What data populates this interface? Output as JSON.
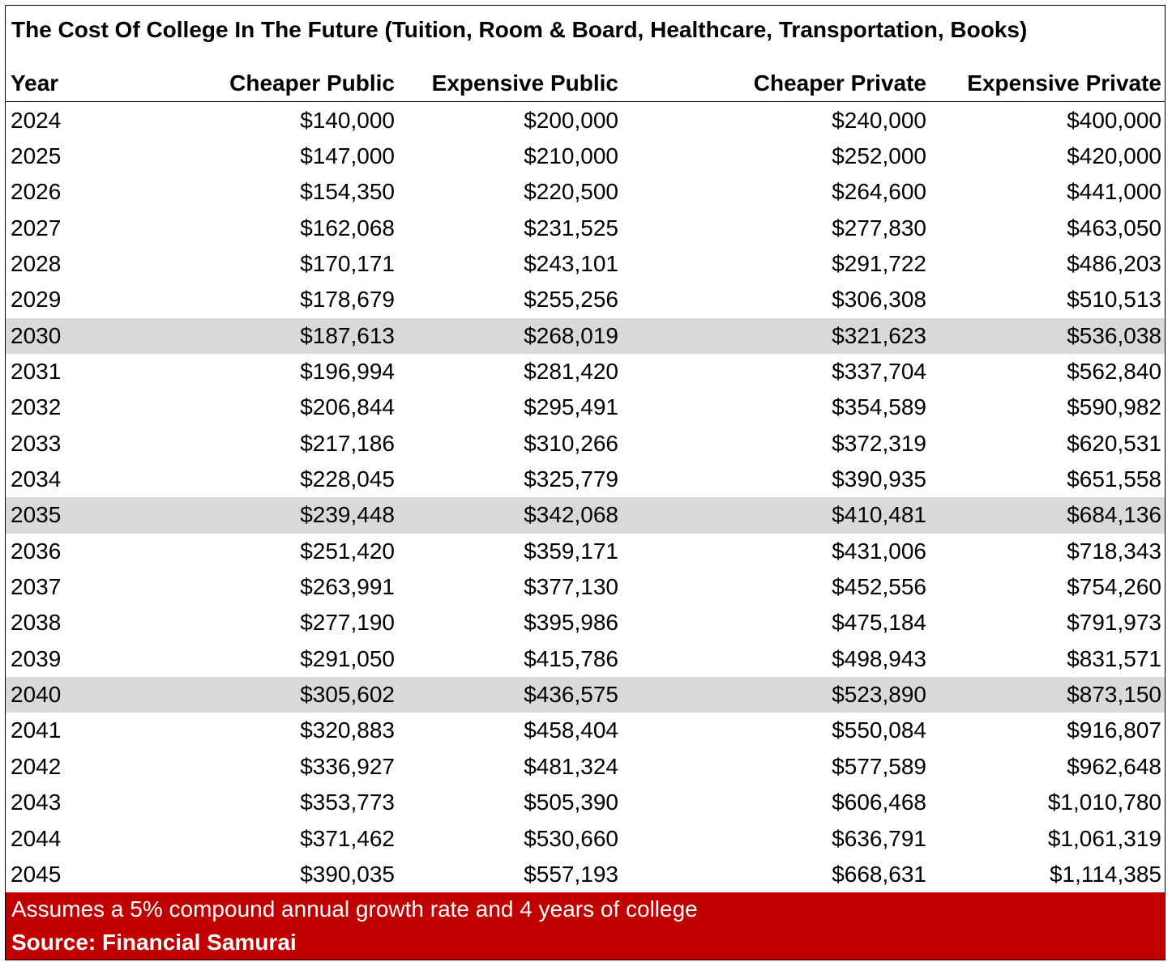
{
  "title": "The Cost Of College In The Future (Tuition, Room & Board, Healthcare, Transportation, Books)",
  "table": {
    "columns": [
      "Year",
      "Cheaper Public",
      "Expensive Public",
      "Cheaper Private",
      "Expensive Private"
    ],
    "rows": [
      [
        "2024",
        "$140,000",
        "$200,000",
        "$240,000",
        "$400,000"
      ],
      [
        "2025",
        "$147,000",
        "$210,000",
        "$252,000",
        "$420,000"
      ],
      [
        "2026",
        "$154,350",
        "$220,500",
        "$264,600",
        "$441,000"
      ],
      [
        "2027",
        "$162,068",
        "$231,525",
        "$277,830",
        "$463,050"
      ],
      [
        "2028",
        "$170,171",
        "$243,101",
        "$291,722",
        "$486,203"
      ],
      [
        "2029",
        "$178,679",
        "$255,256",
        "$306,308",
        "$510,513"
      ],
      [
        "2030",
        "$187,613",
        "$268,019",
        "$321,623",
        "$536,038"
      ],
      [
        "2031",
        "$196,994",
        "$281,420",
        "$337,704",
        "$562,840"
      ],
      [
        "2032",
        "$206,844",
        "$295,491",
        "$354,589",
        "$590,982"
      ],
      [
        "2033",
        "$217,186",
        "$310,266",
        "$372,319",
        "$620,531"
      ],
      [
        "2034",
        "$228,045",
        "$325,779",
        "$390,935",
        "$651,558"
      ],
      [
        "2035",
        "$239,448",
        "$342,068",
        "$410,481",
        "$684,136"
      ],
      [
        "2036",
        "$251,420",
        "$359,171",
        "$431,006",
        "$718,343"
      ],
      [
        "2037",
        "$263,991",
        "$377,130",
        "$452,556",
        "$754,260"
      ],
      [
        "2038",
        "$277,190",
        "$395,986",
        "$475,184",
        "$791,973"
      ],
      [
        "2039",
        "$291,050",
        "$415,786",
        "$498,943",
        "$831,571"
      ],
      [
        "2040",
        "$305,602",
        "$436,575",
        "$523,890",
        "$873,150"
      ],
      [
        "2041",
        "$320,883",
        "$458,404",
        "$550,084",
        "$916,807"
      ],
      [
        "2042",
        "$336,927",
        "$481,324",
        "$577,589",
        "$962,648"
      ],
      [
        "2043",
        "$353,773",
        "$505,390",
        "$606,468",
        "$1,010,780"
      ],
      [
        "2044",
        "$371,462",
        "$530,660",
        "$636,791",
        "$1,061,319"
      ],
      [
        "2045",
        "$390,035",
        "$557,193",
        "$668,631",
        "$1,114,385"
      ]
    ]
  },
  "footer": {
    "note": "Assumes a 5% compound annual growth rate and 4 years of college",
    "source": "Source: Financial Samurai"
  }
}
